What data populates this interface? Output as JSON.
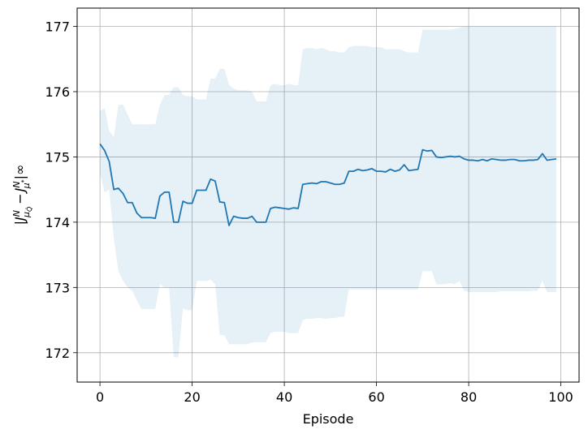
{
  "chart_data": {
    "type": "line",
    "title": "",
    "xlabel": "Episode",
    "ylabel": "|J^N_{μ_Q̂} − J^N_{μ*}|∞",
    "ylabel_parts": {
      "j1": "J",
      "sup1": "N",
      "sub1": "μ",
      "subsub1": "Q̂",
      "minus": "−",
      "j2": "J",
      "sup2": "N",
      "sub2": "μ",
      "subsup2": "*",
      "close": "|∞",
      "open": "|"
    },
    "xlim": [
      -4.95,
      103.95
    ],
    "ylim": [
      171.55,
      177.28
    ],
    "xticks": [
      0,
      20,
      40,
      60,
      80,
      100
    ],
    "yticks": [
      172,
      173,
      174,
      175,
      176,
      177
    ],
    "grid": true,
    "line_color": "#1f77b4",
    "band_color": "#1f77b4",
    "band_opacity": 0.11,
    "x": [
      0,
      1,
      2,
      3,
      4,
      5,
      6,
      7,
      8,
      9,
      10,
      11,
      12,
      13,
      14,
      15,
      16,
      17,
      18,
      19,
      20,
      21,
      22,
      23,
      24,
      25,
      26,
      27,
      28,
      29,
      30,
      31,
      32,
      33,
      34,
      35,
      36,
      37,
      38,
      39,
      40,
      41,
      42,
      43,
      44,
      45,
      46,
      47,
      48,
      49,
      50,
      51,
      52,
      53,
      54,
      55,
      56,
      57,
      58,
      59,
      60,
      61,
      62,
      63,
      64,
      65,
      66,
      67,
      68,
      69,
      70,
      71,
      72,
      73,
      74,
      75,
      76,
      77,
      78,
      79,
      80,
      81,
      82,
      83,
      84,
      85,
      86,
      87,
      88,
      89,
      90,
      91,
      92,
      93,
      94,
      95,
      96,
      97,
      98,
      99
    ],
    "series": [
      {
        "type": "line",
        "values": [
          175.2,
          175.1,
          174.93,
          174.5,
          174.52,
          174.44,
          174.3,
          174.3,
          174.14,
          174.07,
          174.07,
          174.07,
          174.06,
          174.4,
          174.46,
          174.46,
          174.0,
          174.0,
          174.32,
          174.29,
          174.29,
          174.49,
          174.49,
          174.49,
          174.66,
          174.63,
          174.31,
          174.3,
          173.95,
          174.09,
          174.07,
          174.06,
          174.06,
          174.09,
          174.0,
          174.0,
          174.0,
          174.21,
          174.23,
          174.22,
          174.21,
          174.2,
          174.22,
          174.21,
          174.58,
          174.59,
          174.6,
          174.59,
          174.62,
          174.62,
          174.6,
          174.58,
          174.58,
          174.6,
          174.78,
          174.78,
          174.81,
          174.79,
          174.8,
          174.82,
          174.78,
          174.78,
          174.77,
          174.81,
          174.78,
          174.8,
          174.88,
          174.79,
          174.8,
          174.81,
          175.11,
          175.09,
          175.1,
          175.0,
          174.99,
          175.0,
          175.01,
          175.0,
          175.01,
          174.97,
          174.95,
          174.95,
          174.94,
          174.96,
          174.94,
          174.97,
          174.96,
          174.95,
          174.95,
          174.96,
          174.96,
          174.94,
          174.94,
          174.95,
          174.95,
          174.96,
          175.05,
          174.95,
          174.96,
          174.97
        ]
      },
      {
        "type": "band",
        "upper": [
          175.7,
          175.75,
          175.4,
          175.3,
          175.8,
          175.8,
          175.65,
          175.5,
          175.5,
          175.5,
          175.5,
          175.5,
          175.5,
          175.8,
          175.95,
          175.95,
          176.07,
          176.07,
          175.95,
          175.93,
          175.93,
          175.88,
          175.88,
          175.88,
          176.2,
          176.2,
          176.35,
          176.35,
          176.1,
          176.05,
          176.02,
          176.02,
          176.02,
          176.0,
          175.85,
          175.85,
          175.85,
          176.1,
          176.12,
          176.1,
          176.1,
          176.12,
          176.1,
          176.1,
          176.65,
          176.67,
          176.67,
          176.65,
          176.67,
          176.65,
          176.62,
          176.62,
          176.6,
          176.6,
          176.68,
          176.7,
          176.7,
          176.7,
          176.7,
          176.68,
          176.68,
          176.68,
          176.65,
          176.65,
          176.65,
          176.65,
          176.62,
          176.6,
          176.6,
          176.6,
          176.95,
          176.95,
          176.95,
          176.95,
          176.95,
          176.95,
          176.95,
          176.96,
          176.98,
          177.0,
          177.0,
          177.0,
          177.0,
          177.0,
          177.0,
          177.0,
          177.0,
          177.0,
          177.0,
          177.0,
          177.0,
          177.0,
          177.0,
          177.0,
          177.0,
          177.0,
          177.0,
          177.0,
          177.0,
          177.0
        ],
        "lower": [
          174.75,
          174.45,
          174.5,
          173.75,
          173.25,
          173.1,
          173.0,
          172.95,
          172.8,
          172.67,
          172.67,
          172.67,
          172.67,
          173.05,
          173.0,
          173.0,
          171.93,
          171.93,
          172.68,
          172.65,
          172.65,
          173.1,
          173.1,
          173.1,
          173.12,
          173.05,
          172.27,
          172.27,
          172.13,
          172.13,
          172.13,
          172.13,
          172.13,
          172.16,
          172.16,
          172.16,
          172.16,
          172.3,
          172.32,
          172.32,
          172.32,
          172.3,
          172.3,
          172.3,
          172.5,
          172.52,
          172.52,
          172.53,
          172.53,
          172.52,
          172.53,
          172.53,
          172.55,
          172.55,
          172.97,
          172.97,
          172.97,
          172.97,
          172.97,
          172.97,
          172.97,
          172.97,
          172.97,
          172.97,
          172.97,
          172.97,
          172.97,
          172.97,
          172.97,
          172.97,
          173.25,
          173.25,
          173.25,
          173.05,
          173.05,
          173.05,
          173.07,
          173.05,
          173.1,
          172.95,
          172.93,
          172.93,
          172.93,
          172.93,
          172.93,
          172.93,
          172.93,
          172.94,
          172.94,
          172.94,
          172.94,
          172.94,
          172.94,
          172.94,
          172.95,
          172.95,
          173.1,
          172.93,
          172.93,
          172.93
        ]
      }
    ]
  }
}
